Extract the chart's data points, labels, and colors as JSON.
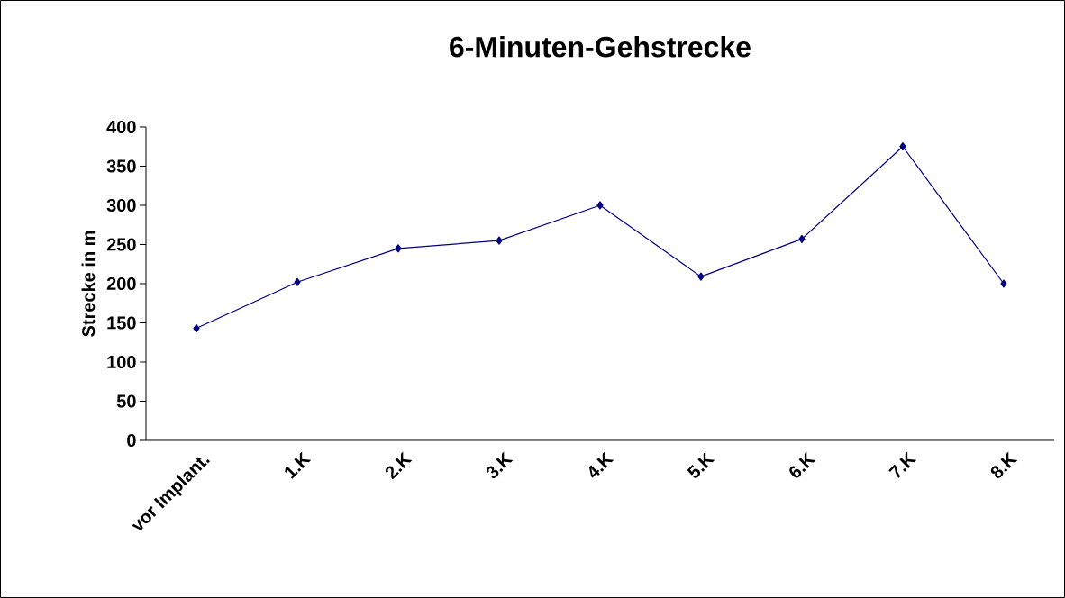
{
  "chart_data": {
    "type": "line",
    "title": "6-Minuten-Gehstrecke",
    "ylabel": "Strecke in m",
    "categories": [
      "vor Implant.",
      "1.K",
      "2.K",
      "3.K",
      "4.K",
      "5.K",
      "6.K",
      "7.K",
      "8.K"
    ],
    "series": [
      {
        "color": "#000080",
        "values": [
          143,
          202,
          245,
          255,
          300,
          209,
          257,
          375,
          200
        ]
      }
    ],
    "ylim": [
      0,
      400
    ],
    "yticks": [
      0,
      50,
      100,
      150,
      200,
      250,
      300,
      350,
      400
    ],
    "marker": "diamond",
    "line_style": "solid",
    "grid": false
  }
}
